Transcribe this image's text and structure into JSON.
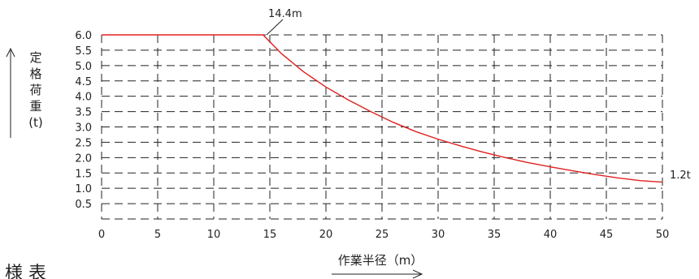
{
  "chart_data": {
    "type": "line",
    "title": "",
    "xlabel": "作業半径（m）",
    "ylabel_chars": [
      "定",
      "格",
      "荷",
      "重",
      "(t)"
    ],
    "xlim": [
      0,
      50
    ],
    "ylim": [
      0,
      6.0
    ],
    "x_ticks": [
      "0",
      "5",
      "10",
      "15",
      "20",
      "25",
      "30",
      "35",
      "40",
      "45",
      "50"
    ],
    "y_ticks": [
      "0.5",
      "1.0",
      "1.5",
      "2.0",
      "2.5",
      "3.0",
      "3.5",
      "4.0",
      "4.5",
      "5.0",
      "5.5",
      "6.0"
    ],
    "grid": true,
    "series": [
      {
        "color": "#e02020",
        "x": [
          0,
          14.4,
          16,
          18,
          20,
          22,
          24,
          26,
          28,
          30,
          32,
          34,
          36,
          38,
          40,
          42,
          44,
          46,
          48,
          50
        ],
        "y": [
          6.0,
          6.0,
          5.4,
          4.8,
          4.3,
          3.88,
          3.5,
          3.15,
          2.85,
          2.6,
          2.38,
          2.18,
          2.0,
          1.84,
          1.7,
          1.57,
          1.45,
          1.34,
          1.25,
          1.2
        ]
      }
    ],
    "annotations": {
      "peak_label": "14.4m",
      "end_label": "1.2t"
    }
  },
  "footer_partial_text": "様 表"
}
